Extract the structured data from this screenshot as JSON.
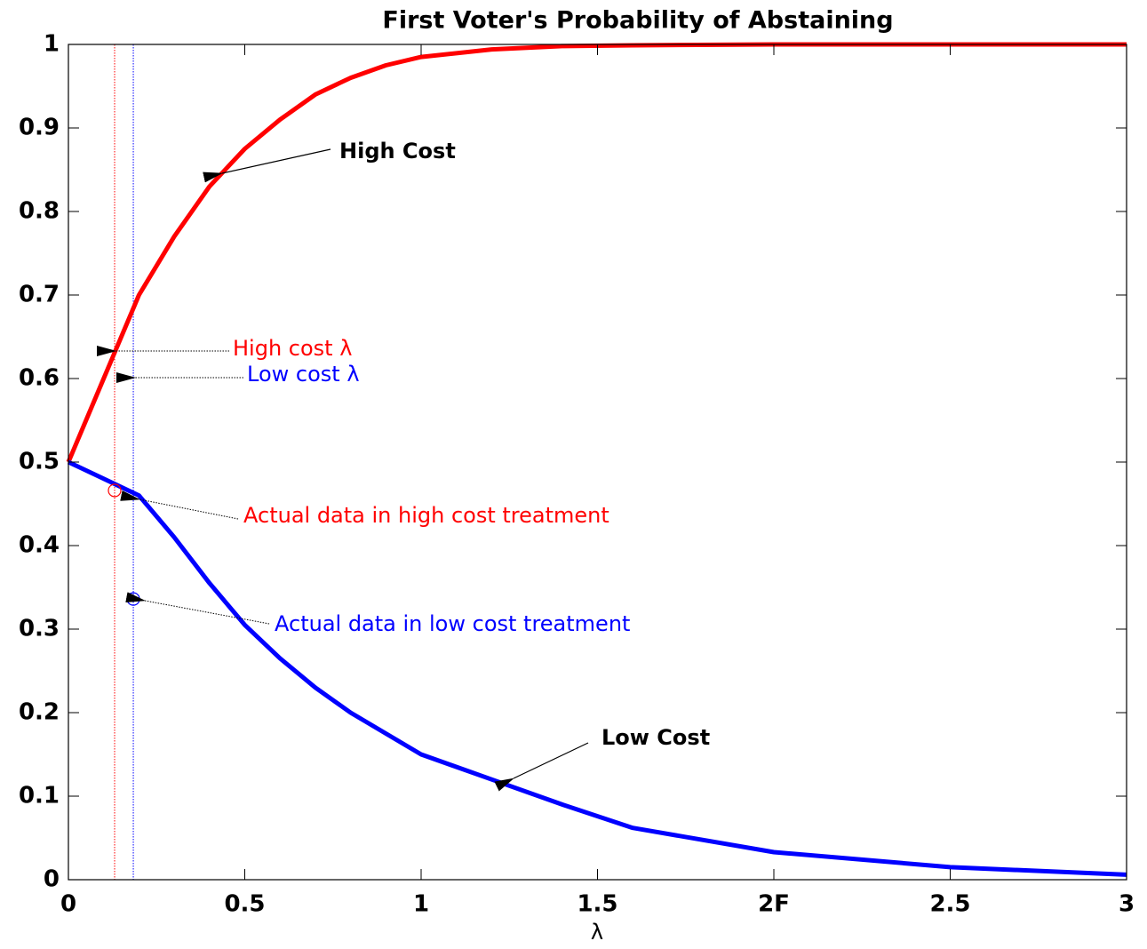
{
  "chart_data": {
    "type": "line",
    "title": "First Voter's Probability of Abstaining",
    "xlabel": "λ",
    "x": [
      0,
      0.1,
      0.2,
      0.3,
      0.4,
      0.5,
      0.6,
      0.7,
      0.8,
      0.9,
      1,
      1.2,
      1.4,
      1.6,
      2,
      2.5,
      3
    ],
    "series": [
      {
        "name": "High Cost",
        "color": "#ff0000",
        "values": [
          0.5,
          0.6,
          0.7,
          0.77,
          0.83,
          0.875,
          0.91,
          0.94,
          0.96,
          0.975,
          0.985,
          0.994,
          0.998,
          0.999,
          1,
          1,
          1
        ]
      },
      {
        "name": "Low Cost",
        "color": "#0000ff",
        "values": [
          0.5,
          0.48,
          0.46,
          0.41,
          0.355,
          0.305,
          0.265,
          0.23,
          0.2,
          0.175,
          0.15,
          0.12,
          0.09,
          0.062,
          0.033,
          0.015,
          0.006
        ]
      }
    ],
    "reference_lines": [
      {
        "label": "High cost λ",
        "color": "#ff0000",
        "x": 0.131
      },
      {
        "label": "Low cost λ",
        "color": "#0000ff",
        "x": 0.184
      }
    ],
    "points": [
      {
        "label": "Actual data in high cost treatment",
        "color": "#ff0000",
        "x": 0.131,
        "y": 0.466
      },
      {
        "label": "Actual data in low cost treatment",
        "color": "#0000ff",
        "x": 0.184,
        "y": 0.336
      }
    ],
    "xlim": [
      0,
      3
    ],
    "ylim": [
      0,
      1
    ],
    "xticks": [
      0,
      0.5,
      1,
      1.5,
      {
        "value": 2,
        "label": "2F"
      },
      2.5,
      3
    ],
    "yticks": [
      0,
      0.1,
      0.2,
      0.3,
      0.4,
      0.5,
      0.6,
      0.7,
      0.8,
      0.9,
      1
    ]
  }
}
